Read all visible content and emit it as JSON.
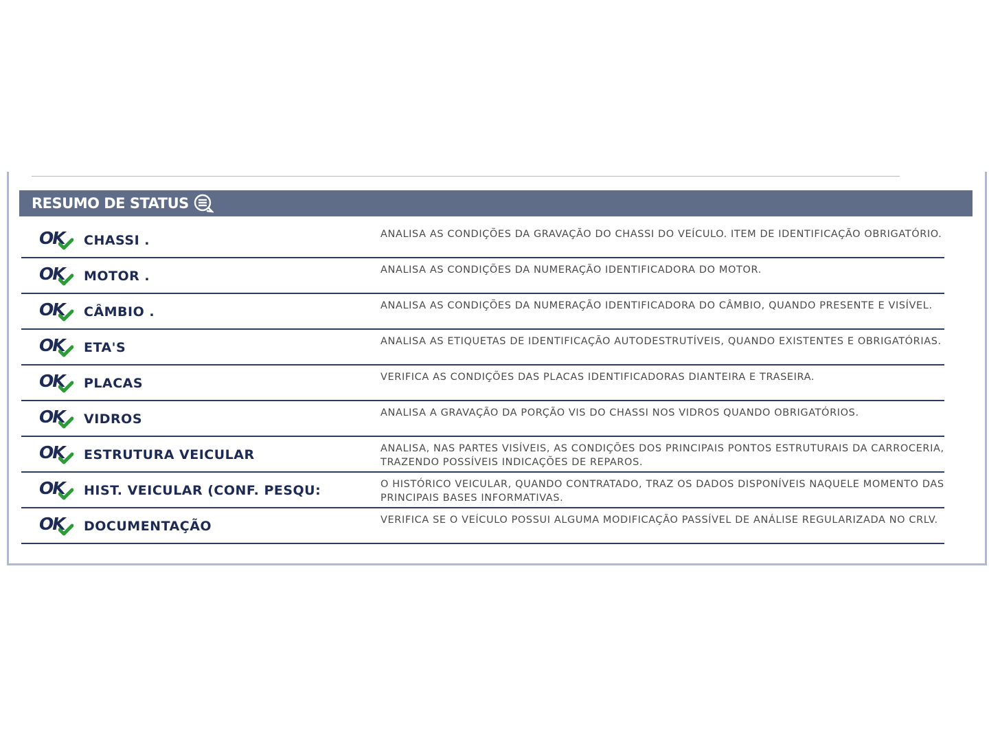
{
  "header": {
    "title": "RESUMO DE STATUS",
    "icon": "chat-list-icon",
    "color": "#5f6d89"
  },
  "status_label": "OK",
  "items": [
    {
      "name": "CHASSI  .",
      "description": "ANALISA AS CONDIÇÕES DA GRAVAÇÃO DO CHASSI DO VEÍCULO. ITEM DE IDENTIFICAÇÃO OBRIGATÓRIO."
    },
    {
      "name": "MOTOR  .",
      "description": "ANALISA AS CONDIÇÕES DA NUMERAÇÃO IDENTIFICADORA DO MOTOR."
    },
    {
      "name": "CÂMBIO  .",
      "description": "ANALISA AS CONDIÇÕES DA NUMERAÇÃO IDENTIFICADORA DO CÂMBIO, QUANDO PRESENTE E VISÍVEL."
    },
    {
      "name": "ETA'S",
      "description": "ANALISA AS ETIQUETAS DE IDENTIFICAÇÃO AUTODESTRUTÍVEIS, QUANDO EXISTENTES E OBRIGATÓRIAS."
    },
    {
      "name": "PLACAS",
      "description": "VERIFICA AS CONDIÇÕES DAS PLACAS IDENTIFICADORAS DIANTEIRA E TRASEIRA."
    },
    {
      "name": "VIDROS",
      "description": "ANALISA A GRAVAÇÃO DA PORÇÃO VIS DO CHASSI NOS VIDROS QUANDO OBRIGATÓRIOS."
    },
    {
      "name": "ESTRUTURA VEICULAR",
      "description": "ANALISA, NAS PARTES VISÍVEIS, AS CONDIÇÕES DOS PRINCIPAIS PONTOS ESTRUTURAIS DA CARROCERIA, TRAZENDO POSSÍVEIS INDICAÇÕES DE REPAROS."
    },
    {
      "name": "HIST. VEICULAR (CONF. PESQU:",
      "description": "O HISTÓRICO VEICULAR, QUANDO CONTRATADO, TRAZ OS DADOS DISPONÍVEIS NAQUELE MOMENTO DAS PRINCIPAIS BASES INFORMATIVAS."
    },
    {
      "name": "DOCUMENTAÇÃO",
      "description": "VERIFICA SE O VEÍCULO POSSUI ALGUMA MODIFICAÇÃO PASSÍVEL DE ANÁLISE REGULARIZADA NO CRLV."
    }
  ]
}
